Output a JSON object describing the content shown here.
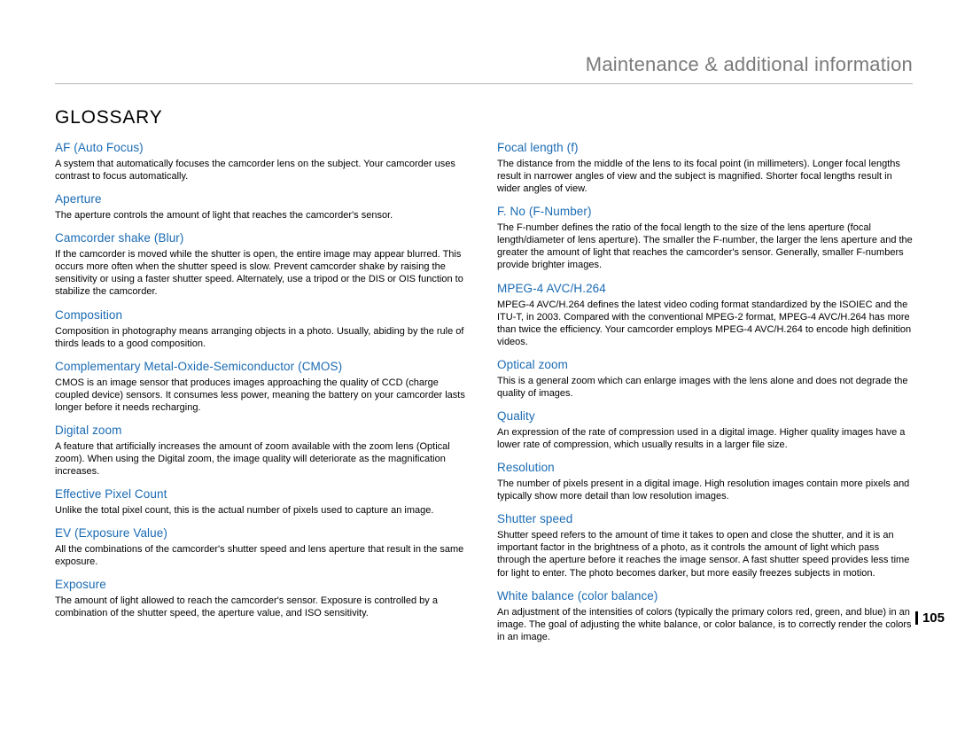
{
  "header": "Maintenance & additional information",
  "title": "GLOSSARY",
  "page_number": "105",
  "colors": {
    "term": "#1a6bb3",
    "header_text": "#7a7a7a",
    "rule": "#b5b5b5",
    "body": "#000000",
    "background": "#ffffff"
  },
  "typography": {
    "header_fontsize": 22,
    "title_fontsize": 21,
    "term_fontsize": 13.5,
    "def_fontsize": 11
  },
  "left": [
    {
      "term": "AF (Auto Focus)",
      "def": "A system that automatically focuses the camcorder lens on the subject. Your camcorder uses contrast to focus automatically."
    },
    {
      "term": "Aperture",
      "def": "The aperture controls the amount of light that reaches the camcorder's sensor."
    },
    {
      "term": "Camcorder shake (Blur)",
      "def": "If the camcorder is moved while the shutter is open, the entire image may appear blurred. This occurs more often when the shutter speed is slow. Prevent camcorder shake by raising the sensitivity or using a faster shutter speed. Alternately, use a tripod or the DIS or OIS function to stabilize the camcorder."
    },
    {
      "term": "Composition",
      "def": "Composition in photography means arranging objects in a photo. Usually, abiding by the rule of thirds leads to a good composition."
    },
    {
      "term": "Complementary Metal-Oxide-Semiconductor (CMOS)",
      "def": "CMOS is an image sensor that produces images approaching the quality of CCD (charge coupled device) sensors. It consumes less power, meaning the battery on your camcorder lasts longer before it needs recharging."
    },
    {
      "term": "Digital zoom",
      "def": "A feature that artificially increases the amount of zoom available with the zoom lens (Optical zoom). When using the Digital zoom, the image quality will deteriorate as the magnification increases."
    },
    {
      "term": "Effective Pixel Count",
      "def": "Unlike the total pixel count, this is the actual number of pixels used to capture an image."
    },
    {
      "term": "EV (Exposure Value)",
      "def": "All the combinations of the camcorder's shutter speed and lens aperture that result in the same exposure."
    },
    {
      "term": "Exposure",
      "def": "The amount of light allowed to reach the camcorder's sensor. Exposure is controlled by a combination of the shutter speed, the aperture value, and ISO sensitivity."
    }
  ],
  "right": [
    {
      "term": "Focal length (f)",
      "def": "The distance from the middle of the lens to its focal point (in millimeters). Longer focal lengths result in narrower angles of view and the subject is magnified. Shorter focal lengths result in wider angles of view."
    },
    {
      "term": "F. No (F-Number)",
      "def": "The F-number defines the ratio of the focal length to the size of the lens aperture (focal length/diameter of lens aperture). The smaller the F-number, the larger the lens aperture and the greater the amount of light that reaches the camcorder's sensor. Generally, smaller F-numbers provide brighter images."
    },
    {
      "term": "MPEG-4 AVC/H.264",
      "def": "MPEG-4 AVC/H.264 defines the latest video coding format standardized by the ISOIEC and the ITU-T, in 2003. Compared with the conventional MPEG-2 format, MPEG-4 AVC/H.264 has more than twice the efficiency. Your camcorder employs MPEG-4 AVC/H.264 to encode high definition videos."
    },
    {
      "term": "Optical zoom",
      "def": "This is a general zoom which can enlarge images with the lens alone and does not degrade the quality of images."
    },
    {
      "term": "Quality",
      "def": "An expression of the rate of compression used in a digital image. Higher quality images have a lower rate of compression, which usually results in a larger file size."
    },
    {
      "term": "Resolution",
      "def": "The number of pixels present in a digital image. High resolution images contain more pixels and typically show more detail than low resolution images."
    },
    {
      "term": "Shutter speed",
      "def": "Shutter speed refers to the amount of time it takes to open and close the shutter, and it is an important factor in the brightness of a photo, as it controls the amount of light which pass through the aperture before it reaches the image sensor. A fast shutter speed provides less time for light to enter. The photo becomes darker, but more easily freezes subjects in motion."
    },
    {
      "term": "White balance (color balance)",
      "def": "An adjustment of the intensities of colors (typically the primary colors red, green, and blue) in an image. The goal of adjusting the white balance, or color balance, is to correctly render the colors in an image."
    }
  ]
}
